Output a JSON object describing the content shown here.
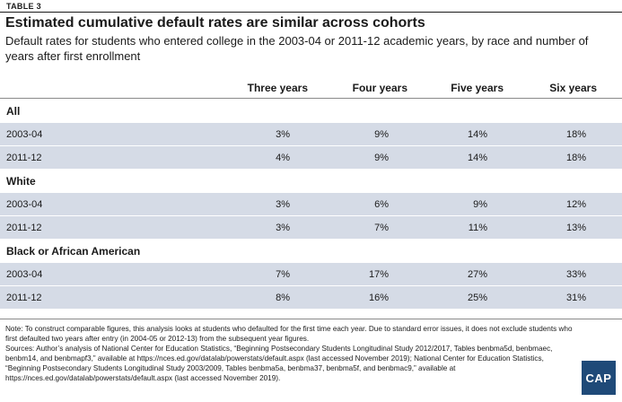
{
  "header": {
    "table_label": "TABLE 3",
    "title": "Estimated cumulative default rates are similar across cohorts",
    "subtitle": "Default rates for students who entered college in the 2003-04 or 2011-12 academic years, by race and number of years after first enrollment"
  },
  "columns": [
    "Three years",
    "Four years",
    "Five years",
    "Six years"
  ],
  "groups": [
    {
      "name": "All",
      "rows": [
        {
          "label": "2003-04",
          "values": [
            "3%",
            "9%",
            "14%",
            "18%"
          ]
        },
        {
          "label": "2011-12",
          "values": [
            "4%",
            "9%",
            "14%",
            "18%"
          ]
        }
      ]
    },
    {
      "name": "White",
      "rows": [
        {
          "label": "2003-04",
          "values": [
            "3%",
            "6%",
            "9%",
            "12%"
          ]
        },
        {
          "label": "2011-12",
          "values": [
            "3%",
            "7%",
            "11%",
            "13%"
          ]
        }
      ]
    },
    {
      "name": "Black or African American",
      "rows": [
        {
          "label": "2003-04",
          "values": [
            "7%",
            "17%",
            "27%",
            "33%"
          ]
        },
        {
          "label": "2011-12",
          "values": [
            "8%",
            "16%",
            "25%",
            "31%"
          ]
        }
      ]
    }
  ],
  "notes": {
    "note": "Note: To construct comparable figures, this analysis looks at students who defaulted for the first time each year. Due to standard error issues, it does not exclude students who first defaulted two years after entry (in 2004-05 or 2012-13) from the subsequent year figures.",
    "sources": "Sources: Author’s analysis of National Center for Education Statistics, “Beginning Postsecondary Students Longitudinal Study 2012/2017, Tables benbma5d, benbmaec, benbm14, and benbmapf3,” available at https://nces.ed.gov/datalab/powerstats/default.aspx (last accessed November 2019); National Center for Education Statistics, “Beginning Postsecondary Students Longitudinal Study 2003/2009, Tables benbma5a, benbma37, benbma5f, and benbmac9,” available at https://nces.ed.gov/datalab/powerstats/default.aspx (last accessed November 2019)."
  },
  "logo": {
    "text": "CAP",
    "color": "#1f4a78"
  },
  "colors": {
    "row_shade": "#d5dbe6"
  }
}
